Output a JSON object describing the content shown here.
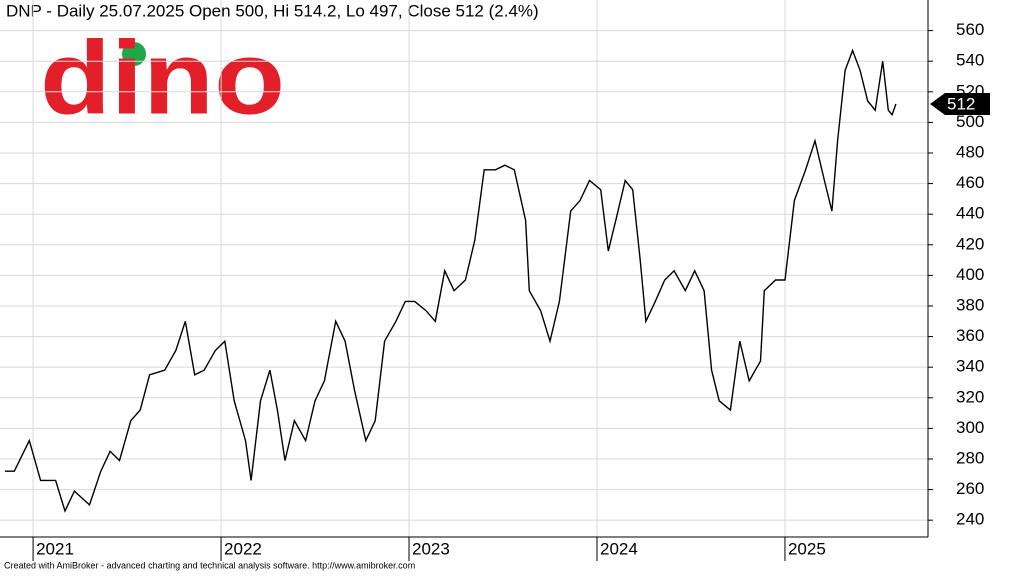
{
  "chart_data": {
    "type": "line",
    "title": "DNP - Daily 25.07.2025 Open 500, Hi 514.2, Lo 497, Close 512 (2.4%)",
    "logo": "dino",
    "credit": "Created with AmiBroker - advanced charting and technical analysis software. http://www.amibroker.com",
    "color": "#000000",
    "grid": true,
    "xlim": [
      2020.824,
      2025.761
    ],
    "xticks": [
      2021,
      2022,
      2023,
      2024,
      2025
    ],
    "ylim": [
      229,
      580
    ],
    "yticks": [
      240,
      260,
      280,
      300,
      320,
      340,
      360,
      380,
      400,
      420,
      440,
      460,
      480,
      500,
      520,
      540,
      560
    ],
    "last_value": 512,
    "x": [
      2020.85,
      2020.9,
      2020.98,
      2021.04,
      2021.12,
      2021.17,
      2021.22,
      2021.3,
      2021.36,
      2021.41,
      2021.46,
      2021.52,
      2021.57,
      2021.62,
      2021.7,
      2021.76,
      2021.81,
      2021.86,
      2021.91,
      2021.97,
      2022.02,
      2022.07,
      2022.13,
      2022.16,
      2022.21,
      2022.26,
      2022.3,
      2022.34,
      2022.39,
      2022.45,
      2022.5,
      2022.55,
      2022.61,
      2022.66,
      2022.71,
      2022.77,
      2022.82,
      2022.87,
      2022.93,
      2022.98,
      2023.03,
      2023.09,
      2023.14,
      2023.19,
      2023.24,
      2023.3,
      2023.35,
      2023.4,
      2023.46,
      2023.51,
      2023.56,
      2023.62,
      2023.64,
      2023.7,
      2023.75,
      2023.8,
      2023.86,
      2023.91,
      2023.96,
      2024.02,
      2024.06,
      2024.1,
      2024.15,
      2024.19,
      2024.23,
      2024.26,
      2024.31,
      2024.36,
      2024.41,
      2024.47,
      2024.52,
      2024.57,
      2024.61,
      2024.65,
      2024.71,
      2024.76,
      2024.81,
      2024.87,
      2024.89,
      2024.95,
      2025.0,
      2025.05,
      2025.11,
      2025.16,
      2025.21,
      2025.25,
      2025.28,
      2025.32,
      2025.36,
      2025.4,
      2025.44,
      2025.48,
      2025.52,
      2025.55,
      2025.57,
      2025.59
    ],
    "values": [
      272,
      272,
      292,
      266,
      266,
      246,
      259,
      250,
      272,
      285,
      279,
      305,
      312,
      335,
      338,
      351,
      370,
      335,
      338,
      351,
      357,
      318,
      292,
      266,
      318,
      338,
      312,
      279,
      305,
      292,
      318,
      331,
      370,
      357,
      325,
      292,
      305,
      357,
      370,
      383,
      383,
      377,
      370,
      403,
      390,
      397,
      423,
      469,
      469,
      472,
      469,
      436,
      390,
      377,
      357,
      383,
      442,
      449,
      462,
      456,
      416,
      436,
      462,
      456,
      410,
      370,
      383,
      397,
      403,
      390,
      403,
      390,
      338,
      318,
      312,
      357,
      331,
      344,
      390,
      397,
      397,
      449,
      469,
      488,
      462,
      442,
      488,
      534,
      547,
      534,
      514,
      508,
      540,
      508,
      505,
      512
    ]
  }
}
